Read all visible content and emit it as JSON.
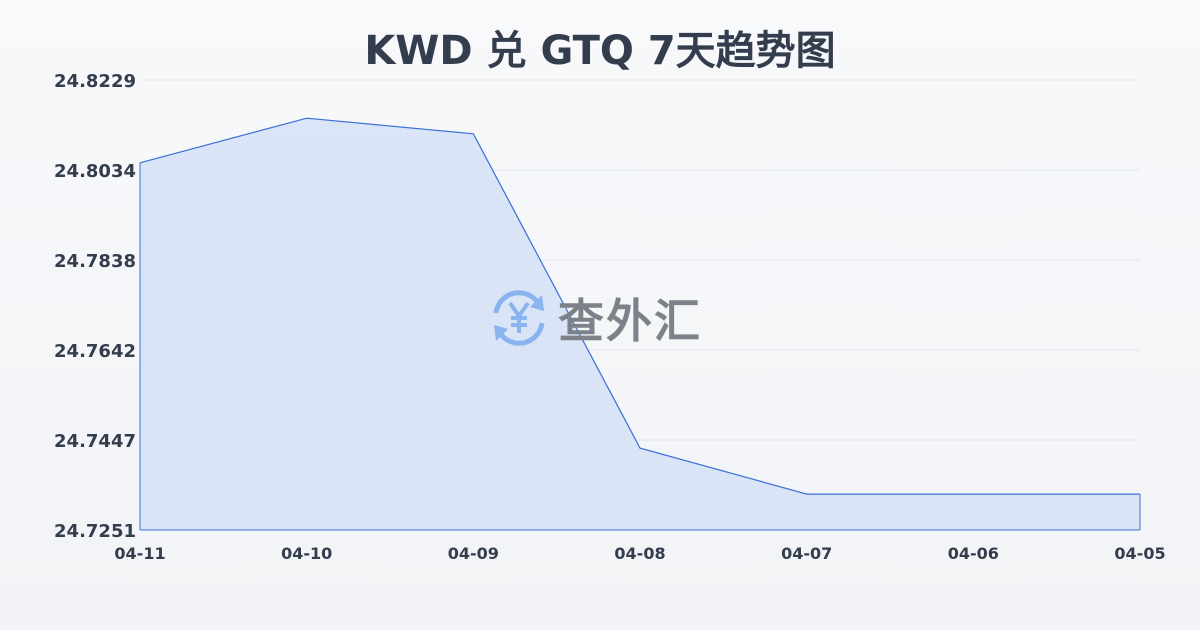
{
  "chart_data": {
    "type": "area",
    "title": "KWD 兑 GTQ 7天趋势图",
    "categories": [
      "04-11",
      "04-10",
      "04-09",
      "04-08",
      "04-07",
      "04-06",
      "04-05"
    ],
    "values": [
      24.8049,
      24.8146,
      24.8112,
      24.7429,
      24.7329,
      24.7329,
      24.7329
    ],
    "yticks": [
      "24.8229",
      "24.8034",
      "24.7838",
      "24.7642",
      "24.7447",
      "24.7251"
    ],
    "ylim": [
      24.7251,
      24.8229
    ],
    "grid": true,
    "colors": {
      "line": "#3a6fd6",
      "fill": "#d6e2f6",
      "grid": "#e3e6ea"
    }
  },
  "watermark": {
    "text": "查外汇",
    "icon": "yen-exchange-icon",
    "color": "#8ab4f0"
  }
}
